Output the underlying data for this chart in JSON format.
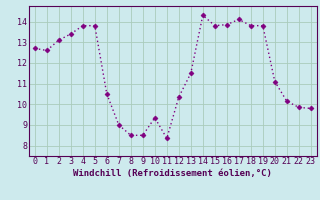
{
  "x": [
    0,
    1,
    2,
    3,
    4,
    5,
    6,
    7,
    8,
    9,
    10,
    11,
    12,
    13,
    14,
    15,
    16,
    17,
    18,
    19,
    20,
    21,
    22,
    23
  ],
  "y": [
    12.7,
    12.6,
    13.1,
    13.4,
    13.8,
    13.8,
    10.5,
    9.0,
    8.5,
    8.5,
    9.35,
    8.35,
    10.35,
    11.5,
    14.3,
    13.8,
    13.85,
    14.1,
    13.8,
    13.8,
    11.1,
    10.15,
    9.85,
    9.8
  ],
  "line_color": "#800080",
  "marker": "D",
  "markersize": 2.5,
  "linewidth": 1.0,
  "bg_color": "#cdeaed",
  "grid_color": "#aaccbb",
  "xlabel": "Windchill (Refroidissement éolien,°C)",
  "xlim": [
    -0.5,
    23.5
  ],
  "ylim": [
    7.5,
    14.75
  ],
  "yticks": [
    8,
    9,
    10,
    11,
    12,
    13,
    14
  ],
  "xticks": [
    0,
    1,
    2,
    3,
    4,
    5,
    6,
    7,
    8,
    9,
    10,
    11,
    12,
    13,
    14,
    15,
    16,
    17,
    18,
    19,
    20,
    21,
    22,
    23
  ],
  "xlabel_fontsize": 6.5,
  "tick_fontsize": 6.0,
  "label_color": "#550055",
  "spine_color": "#550055"
}
